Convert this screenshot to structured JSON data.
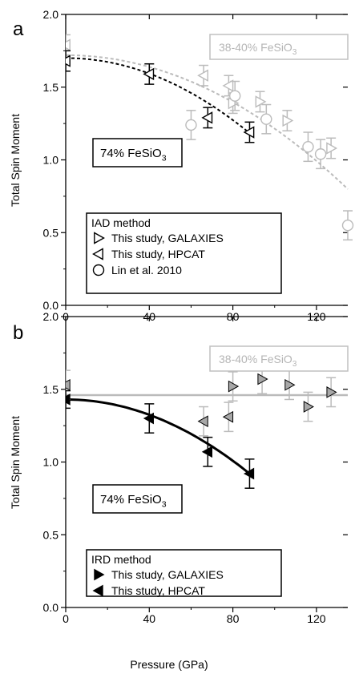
{
  "chart_data": [
    {
      "panel_label": "a",
      "type": "scatter",
      "xlabel": "",
      "ylabel": "Total Spin Moment",
      "xlim": [
        0,
        135
      ],
      "ylim": [
        0.0,
        2.0
      ],
      "x_ticks": [
        0,
        40,
        80,
        120
      ],
      "y_ticks": [
        "0.0",
        "0.5",
        "1.0",
        "1.5",
        "2.0"
      ],
      "annotations": {
        "gray_label": "38-40% FeSiO3",
        "black_label": "74% FeSiO3"
      },
      "legend": {
        "title": "IAD method",
        "entries": [
          {
            "marker": "triangle-right",
            "label": "This study, GALAXIES"
          },
          {
            "marker": "triangle-left",
            "label": "This study, HPCAT"
          },
          {
            "marker": "circle",
            "label": "Lin et al. 2010"
          }
        ]
      },
      "series": [
        {
          "marker": "triangle-left",
          "color": "#000000",
          "points": [
            {
              "x": 0,
              "y": 1.68,
              "err": 0.07
            },
            {
              "x": 40,
              "y": 1.59,
              "err": 0.07
            },
            {
              "x": 68,
              "y": 1.29,
              "err": 0.07
            },
            {
              "x": 88,
              "y": 1.19,
              "err": 0.07
            }
          ]
        },
        {
          "marker": "triangle-left",
          "color": "#bbbbbb",
          "points": [
            {
              "x": 0,
              "y": 1.79,
              "err": 0.07
            },
            {
              "x": 66,
              "y": 1.58,
              "err": 0.07
            },
            {
              "x": 78,
              "y": 1.51,
              "err": 0.07
            }
          ]
        },
        {
          "marker": "triangle-right",
          "color": "#bbbbbb",
          "points": [
            {
              "x": 80,
              "y": 1.39,
              "err": 0.07
            },
            {
              "x": 93,
              "y": 1.4,
              "err": 0.07
            },
            {
              "x": 106,
              "y": 1.27,
              "err": 0.07
            },
            {
              "x": 127,
              "y": 1.08,
              "err": 0.07
            }
          ]
        },
        {
          "marker": "circle",
          "color": "#bbbbbb",
          "points": [
            {
              "x": 60,
              "y": 1.24,
              "err": 0.1
            },
            {
              "x": 81,
              "y": 1.44,
              "err": 0.1
            },
            {
              "x": 96,
              "y": 1.28,
              "err": 0.1
            },
            {
              "x": 116,
              "y": 1.09,
              "err": 0.1
            },
            {
              "x": 122,
              "y": 1.04,
              "err": 0.1
            },
            {
              "x": 135,
              "y": 0.55,
              "err": 0.1
            }
          ]
        }
      ],
      "fits": [
        {
          "style": "dashed",
          "color": "#000000",
          "x_range": [
            0,
            88
          ],
          "a": 1.7,
          "b": 6.66e-05
        },
        {
          "style": "dashed",
          "color": "#bbbbbb",
          "x_range": [
            0,
            135
          ],
          "a": 1.72,
          "b": 5.05e-05
        }
      ]
    },
    {
      "panel_label": "b",
      "type": "scatter",
      "xlabel": "Pressure (GPa)",
      "ylabel": "Total Spin Moment",
      "xlim": [
        0,
        135
      ],
      "ylim": [
        0.0,
        2.0
      ],
      "x_ticks": [
        0,
        40,
        80,
        120
      ],
      "y_ticks": [
        "0.0",
        "0.5",
        "1.0",
        "1.5",
        "2.0"
      ],
      "annotations": {
        "gray_label": "38-40% FeSiO3",
        "black_label": "74% FeSiO3"
      },
      "legend": {
        "title": "IRD method",
        "entries": [
          {
            "marker": "filled-triangle-right",
            "label": "This study, GALAXIES"
          },
          {
            "marker": "filled-triangle-left",
            "label": "This study, HPCAT"
          }
        ]
      },
      "series": [
        {
          "marker": "filled-triangle-left",
          "color": "#000000",
          "points": [
            {
              "x": 0,
              "y": 1.43,
              "err": 0.06
            },
            {
              "x": 40,
              "y": 1.3,
              "err": 0.1
            },
            {
              "x": 68,
              "y": 1.07,
              "err": 0.1
            },
            {
              "x": 88,
              "y": 0.92,
              "err": 0.1
            }
          ]
        },
        {
          "marker": "filled-triangle-left",
          "color": "#a8a8a8",
          "points": [
            {
              "x": 0,
              "y": 1.53,
              "err": 0.1
            },
            {
              "x": 66,
              "y": 1.28,
              "err": 0.1
            },
            {
              "x": 78,
              "y": 1.31,
              "err": 0.1
            }
          ]
        },
        {
          "marker": "filled-triangle-right",
          "color": "#a8a8a8",
          "points": [
            {
              "x": 80,
              "y": 1.52,
              "err": 0.1
            },
            {
              "x": 94,
              "y": 1.57,
              "err": 0.1
            },
            {
              "x": 107,
              "y": 1.53,
              "err": 0.1
            },
            {
              "x": 116,
              "y": 1.38,
              "err": 0.1
            },
            {
              "x": 127,
              "y": 1.48,
              "err": 0.1
            }
          ]
        }
      ],
      "fits": [
        {
          "style": "solid",
          "color": "#000000",
          "x_range": [
            0,
            88
          ],
          "a": 1.43,
          "b": 6.59e-05
        },
        {
          "style": "solid",
          "color": "#bbbbbb",
          "x_range": [
            0,
            135
          ],
          "a": 1.46,
          "b": 0
        }
      ]
    }
  ]
}
